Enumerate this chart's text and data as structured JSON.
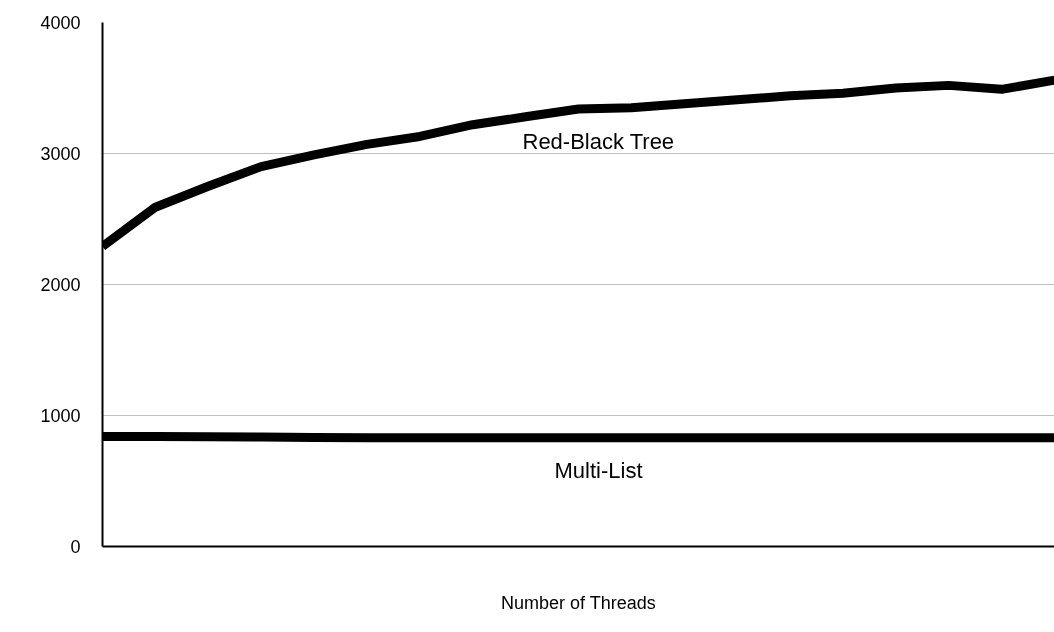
{
  "chart_data": {
    "type": "line",
    "xlabel": "Number of Threads",
    "categories": [
      null,
      null,
      null,
      null,
      null,
      null,
      null,
      null,
      null,
      null,
      null,
      null,
      null,
      null,
      null,
      null,
      null,
      null,
      null
    ],
    "series": [
      {
        "name": "Red-Black Tree",
        "color": "#000000",
        "values": [
          2290,
          2590,
          2750,
          2900,
          2990,
          3070,
          3130,
          3220,
          3280,
          3340,
          3350,
          3380,
          3410,
          3440,
          3460,
          3500,
          3520,
          3490,
          3560
        ]
      },
      {
        "name": "Multi-List",
        "color": "#000000",
        "values": [
          840,
          840,
          838,
          835,
          832,
          830,
          830,
          830,
          830,
          830,
          830,
          830,
          830,
          830,
          830,
          830,
          830,
          830,
          830
        ]
      }
    ],
    "ylim": [
      0,
      4000
    ],
    "yticks": [
      0,
      1000,
      2000,
      3000,
      4000
    ],
    "grid": "y",
    "tick_labels": "y",
    "marker": "none",
    "line_style": "solid"
  }
}
